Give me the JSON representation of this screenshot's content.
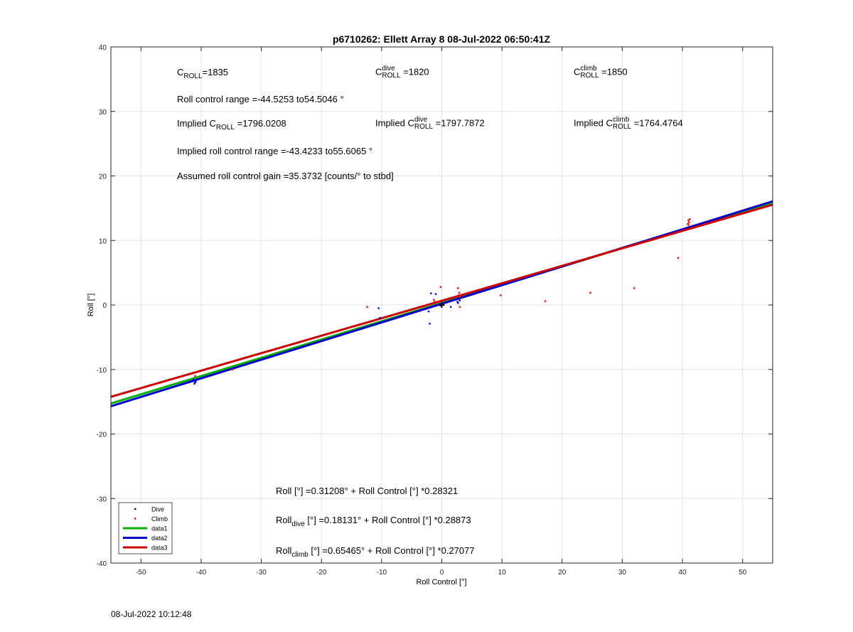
{
  "chart_data": {
    "type": "scatter",
    "title": "p6710262: Ellett Array 8 08-Jul-2022 06:50:41Z",
    "xlabel": "Roll Control [°]",
    "ylabel": "Roll [°]",
    "xlim": [
      -55,
      55
    ],
    "ylim": [
      -40,
      40
    ],
    "xticks": [
      -50,
      -40,
      -30,
      -20,
      -10,
      0,
      10,
      20,
      30,
      40,
      50
    ],
    "yticks": [
      -40,
      -30,
      -20,
      -10,
      0,
      10,
      20,
      30,
      40
    ],
    "grid": true,
    "legend_position": "bottom-left",
    "series": [
      {
        "name": "Dive",
        "kind": "points",
        "color": "#0000ff",
        "points": [
          [
            -41.2,
            -11.8
          ],
          [
            -41.0,
            -12.0
          ],
          [
            -41.3,
            -11.6
          ],
          [
            -41.1,
            -12.2
          ],
          [
            -40.9,
            -11.9
          ],
          [
            -10.5,
            -0.5
          ],
          [
            -10.3,
            -2.0
          ],
          [
            -2.0,
            -2.9
          ],
          [
            -1.8,
            1.8
          ],
          [
            -1.0,
            1.7
          ],
          [
            -2.2,
            -1.0
          ],
          [
            -1.5,
            -0.2
          ],
          [
            -0.5,
            0.1
          ],
          [
            -0.2,
            -0.1
          ],
          [
            0.2,
            0.2
          ],
          [
            1.5,
            -0.3
          ],
          [
            2.6,
            0.5
          ],
          [
            2.8,
            0.9
          ],
          [
            2.9,
            1.2
          ],
          [
            2.7,
            0.3
          ],
          [
            3.0,
            0.7
          ]
        ]
      },
      {
        "name": "Climb",
        "kind": "points",
        "color": "#ff0000",
        "points": [
          [
            -41.0,
            -11.0
          ],
          [
            -34.8,
            -10.0
          ],
          [
            -12.4,
            -0.3
          ],
          [
            -1.3,
            0.8
          ],
          [
            -1.1,
            0.3
          ],
          [
            -1.2,
            0.5
          ],
          [
            -0.2,
            2.8
          ],
          [
            2.7,
            2.6
          ],
          [
            2.8,
            1.5
          ],
          [
            2.9,
            1.9
          ],
          [
            3.0,
            1.2
          ],
          [
            3.0,
            -0.3
          ],
          [
            9.8,
            1.5
          ],
          [
            17.2,
            0.6
          ],
          [
            24.7,
            1.9
          ],
          [
            32.0,
            2.6
          ],
          [
            39.3,
            7.3
          ],
          [
            41.0,
            12.4
          ],
          [
            41.1,
            12.8
          ],
          [
            41.0,
            13.1
          ],
          [
            41.2,
            13.3
          ],
          [
            40.9,
            12.6
          ]
        ]
      },
      {
        "name": "Fit",
        "kind": "point",
        "color": "#000000",
        "points": [
          [
            0,
            0
          ]
        ]
      },
      {
        "name": "data1",
        "kind": "line",
        "color": "#00b000",
        "intercept": 0.31208,
        "slope": 0.28321
      },
      {
        "name": "data2",
        "kind": "line",
        "color": "#0000cc",
        "intercept": 0.18131,
        "slope": 0.28873
      },
      {
        "name": "data3",
        "kind": "line",
        "color": "#cc0000",
        "intercept": 0.65465,
        "slope": 0.27077
      }
    ],
    "legend": [
      "Dive",
      "Climb",
      "data1",
      "data2",
      "data3"
    ]
  },
  "annotations": {
    "c_roll": {
      "prefix": "C",
      "sub": "ROLL",
      "value": "=1835"
    },
    "c_roll_dive": {
      "prefix": "C",
      "sup": "dive",
      "sub": "ROLL",
      "value": "=1820"
    },
    "c_roll_climb": {
      "prefix": "C",
      "sup": "climb",
      "sub": "ROLL",
      "value": "=1850"
    },
    "roll_range": "Roll control range =-44.5253 to54.5046 °",
    "implied_c_roll": {
      "prefix": "Implied C",
      "sub": "ROLL",
      "value": "=1796.0208"
    },
    "implied_c_roll_dive": {
      "prefix": "Implied C",
      "sup": "dive",
      "sub": "ROLL",
      "value": "=1797.7872"
    },
    "implied_c_roll_climb": {
      "prefix": "Implied C",
      "sup": "climb",
      "sub": "ROLL",
      "value": "=1764.4764"
    },
    "implied_range": "Implied roll control range =-43.4233 to55.6065 °",
    "gain": "Assumed roll control gain =35.3732 [counts/° to stbd]",
    "eq_all": "Roll [°] =0.31208° + Roll Control [°] *0.28321",
    "eq_dive": {
      "prefix": "Roll",
      "sub": "dive",
      "rest": " [°] =0.18131° + Roll Control [°] *0.28873"
    },
    "eq_climb": {
      "prefix": "Roll",
      "sub": "climb",
      "rest": " [°] =0.65465° + Roll Control [°] *0.27077"
    }
  },
  "footer": {
    "timestamp": "08-Jul-2022 10:12:48"
  }
}
